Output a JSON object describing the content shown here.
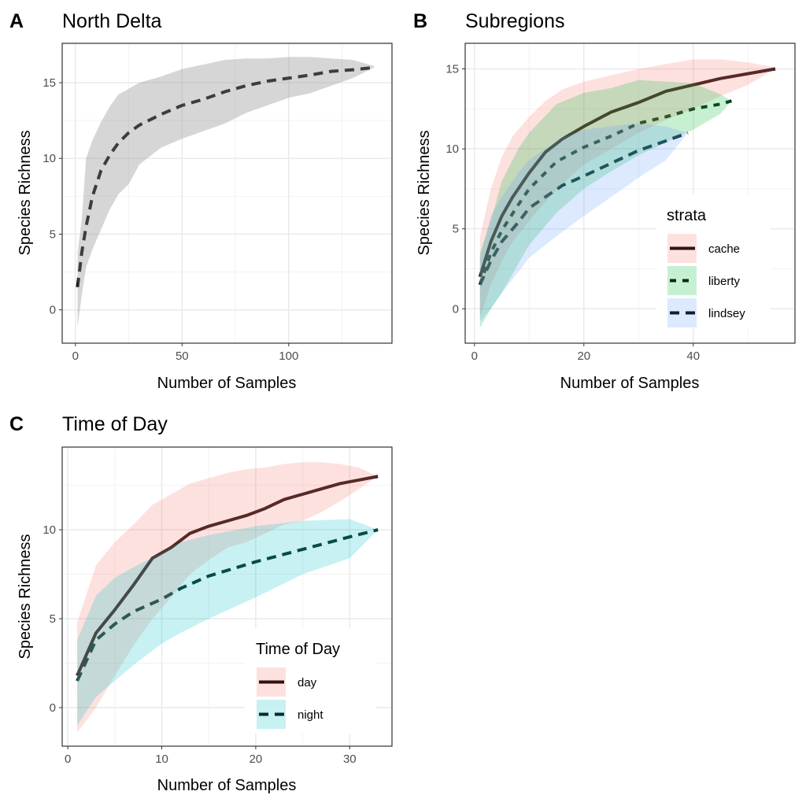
{
  "chart_data": [
    {
      "panel_letter": "A",
      "title": "North Delta",
      "type": "area",
      "xlabel": "Number of Samples",
      "ylabel": "Species Richness",
      "xlim": [
        -6.2,
        148.4
      ],
      "ylim": [
        -2.2,
        17.6
      ],
      "xticks": [
        0,
        50,
        100
      ],
      "yticks": [
        0,
        5,
        10,
        15
      ],
      "grid": true,
      "legend": null,
      "series": [
        {
          "line": "dashed",
          "fill": "#999999",
          "x": [
            1,
            3,
            5,
            8,
            12,
            16,
            20,
            25,
            30,
            40,
            50,
            60,
            70,
            80,
            90,
            100,
            110,
            120,
            130,
            140
          ],
          "y": [
            1.5,
            3.8,
            5.5,
            7.5,
            9.2,
            10.2,
            11.0,
            11.7,
            12.2,
            12.9,
            13.5,
            13.9,
            14.4,
            14.8,
            15.1,
            15.3,
            15.5,
            15.75,
            15.85,
            16.0
          ],
          "lower": [
            -1.2,
            1.0,
            2.8,
            4.0,
            5.3,
            6.6,
            7.6,
            8.3,
            9.6,
            10.7,
            11.3,
            11.8,
            12.3,
            13.0,
            13.5,
            14.0,
            14.3,
            14.8,
            15.3,
            16.0
          ],
          "upper": [
            3.8,
            6.0,
            10.0,
            11.2,
            12.4,
            13.4,
            14.2,
            14.6,
            15.0,
            15.4,
            15.9,
            16.2,
            16.5,
            16.6,
            16.6,
            16.7,
            16.7,
            16.6,
            16.5,
            16.1
          ]
        }
      ]
    },
    {
      "panel_letter": "B",
      "title": "Subregions",
      "type": "area",
      "xlabel": "Number of Samples",
      "ylabel": "Species Richness",
      "xlim": [
        -1.7,
        58.6
      ],
      "ylim": [
        -2.15,
        16.6
      ],
      "xticks": [
        0,
        20,
        40
      ],
      "yticks": [
        0,
        5,
        10,
        15
      ],
      "grid": true,
      "legend": {
        "title": "strata",
        "position": "bottom-right-inside"
      },
      "series": [
        {
          "name": "cache",
          "line": "solid",
          "fill": "#F8766D",
          "line_color": "#2b1414",
          "x": [
            1,
            3,
            5,
            7,
            10,
            13,
            16,
            20,
            25,
            30,
            35,
            40,
            45,
            50,
            55
          ],
          "y": [
            2.0,
            4.2,
            5.8,
            7.0,
            8.5,
            9.8,
            10.6,
            11.4,
            12.3,
            12.9,
            13.6,
            14.0,
            14.4,
            14.7,
            15.0
          ],
          "lower": [
            -0.5,
            1.5,
            3.0,
            4.2,
            5.5,
            6.7,
            7.8,
            9.0,
            10.0,
            11.0,
            11.8,
            12.5,
            13.3,
            14.0,
            15.0
          ],
          "upper": [
            4.5,
            7.5,
            9.5,
            10.8,
            12.0,
            13.0,
            13.7,
            14.2,
            14.6,
            15.0,
            15.3,
            15.6,
            15.6,
            15.4,
            15.1
          ]
        },
        {
          "name": "liberty",
          "line": "dotted",
          "fill": "#00BA38",
          "line_color": "#0a2a12",
          "x": [
            1,
            3,
            5,
            8,
            10,
            15,
            20,
            25,
            30,
            35,
            40,
            45,
            47
          ],
          "y": [
            1.5,
            3.5,
            4.9,
            6.5,
            7.5,
            9.2,
            10.1,
            10.8,
            11.6,
            12.0,
            12.5,
            12.8,
            13.0
          ],
          "lower": [
            -1.2,
            0.0,
            1.0,
            2.8,
            4.0,
            6.0,
            7.5,
            8.6,
            9.6,
            10.4,
            11.2,
            12.2,
            13.0
          ],
          "upper": [
            3.5,
            5.5,
            8.0,
            10.0,
            11.0,
            12.8,
            13.5,
            13.8,
            14.3,
            14.2,
            14.1,
            13.4,
            13.0
          ]
        },
        {
          "name": "lindsey",
          "line": "dashed",
          "fill": "#619CFF",
          "line_color": "#10202c",
          "x": [
            1,
            3,
            5,
            8,
            10,
            13,
            16,
            20,
            25,
            30,
            35,
            39
          ],
          "y": [
            1.5,
            3.0,
            4.2,
            5.4,
            6.3,
            7.0,
            7.7,
            8.3,
            9.1,
            9.9,
            10.5,
            11.0
          ],
          "lower": [
            -0.8,
            0.0,
            1.0,
            2.3,
            3.2,
            4.0,
            4.8,
            5.8,
            7.0,
            8.2,
            9.3,
            11.0
          ],
          "upper": [
            3.2,
            5.8,
            7.0,
            8.5,
            9.3,
            10.0,
            10.7,
            11.2,
            11.4,
            11.6,
            11.4,
            11.0
          ]
        }
      ]
    },
    {
      "panel_letter": "C",
      "title": "Time of Day",
      "type": "area",
      "xlabel": "Number of Samples",
      "ylabel": "Species Richness",
      "xlim": [
        -0.6,
        34.5
      ],
      "ylim": [
        -2.17,
        14.65
      ],
      "xticks": [
        0,
        10,
        20,
        30
      ],
      "yticks": [
        0,
        5,
        10
      ],
      "grid": true,
      "legend": {
        "title": "Time of Day",
        "position": "bottom-right-inside"
      },
      "series": [
        {
          "name": "day",
          "line": "solid",
          "fill": "#F8766D",
          "line_color": "#2b1414",
          "x": [
            1,
            3,
            5,
            7,
            9,
            11,
            13,
            15,
            17,
            19,
            21,
            23,
            25,
            27,
            29,
            31,
            33
          ],
          "y": [
            1.8,
            4.2,
            5.5,
            6.9,
            8.4,
            9.0,
            9.8,
            10.2,
            10.5,
            10.8,
            11.2,
            11.7,
            12.0,
            12.3,
            12.6,
            12.8,
            13.0
          ],
          "lower": [
            -1.4,
            0.0,
            1.8,
            3.5,
            5.0,
            6.2,
            7.5,
            8.3,
            9.0,
            9.3,
            9.8,
            10.3,
            10.5,
            11.0,
            11.6,
            12.3,
            13.0
          ],
          "upper": [
            4.8,
            8.0,
            9.3,
            10.3,
            11.4,
            12.0,
            12.6,
            12.9,
            13.2,
            13.4,
            13.5,
            13.7,
            13.8,
            13.8,
            13.7,
            13.5,
            13.0
          ]
        },
        {
          "name": "night",
          "line": "dashed",
          "fill": "#00BFC4",
          "line_color": "#0a2a2a",
          "x": [
            1,
            3,
            5,
            7,
            10,
            12,
            15,
            20,
            25,
            30,
            33
          ],
          "y": [
            1.5,
            3.8,
            4.7,
            5.4,
            6.1,
            6.7,
            7.4,
            8.2,
            8.9,
            9.6,
            10.0
          ],
          "lower": [
            -1.0,
            0.6,
            1.5,
            2.4,
            3.6,
            4.2,
            5.0,
            6.2,
            7.5,
            8.4,
            10.0
          ],
          "upper": [
            3.8,
            6.3,
            7.3,
            7.9,
            8.7,
            9.3,
            9.7,
            10.2,
            10.5,
            10.6,
            10.0
          ]
        }
      ]
    }
  ]
}
